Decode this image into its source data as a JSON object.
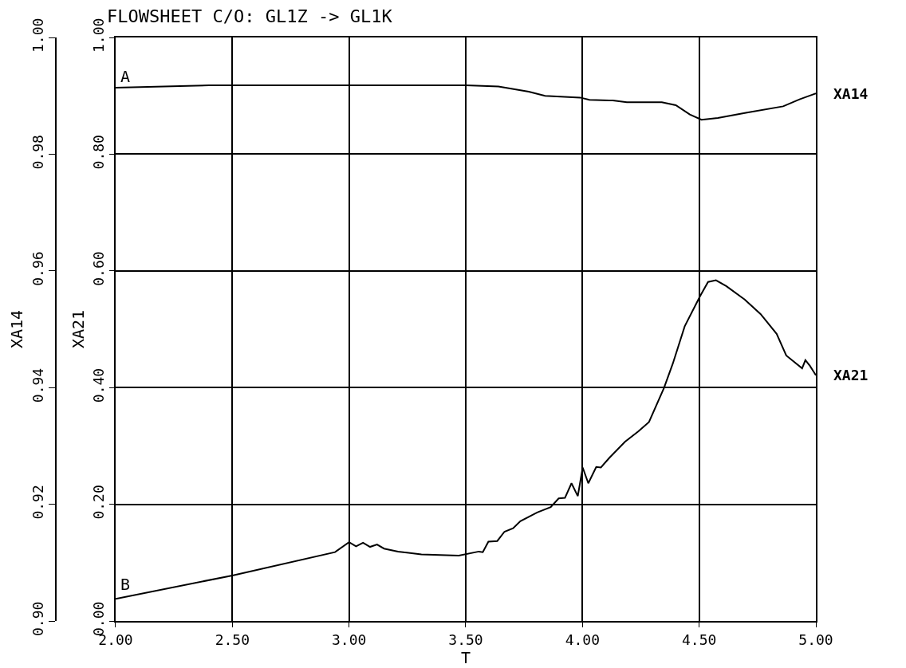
{
  "chart_data": {
    "type": "line",
    "title": "FLOWSHEET C/O: GL1Z -> GL1K",
    "xlabel": "T",
    "ylabel": "XA21",
    "y2label": "XA14",
    "xlim": [
      2,
      5
    ],
    "xticks": [
      {
        "value": 2,
        "label": "2.00"
      },
      {
        "value": 2.5,
        "label": "2.50"
      },
      {
        "value": 3,
        "label": "3.00"
      },
      {
        "value": 3.5,
        "label": "3.50"
      },
      {
        "value": 4,
        "label": "4.00"
      },
      {
        "value": 4.5,
        "label": "4.50"
      },
      {
        "value": 5,
        "label": "5.00"
      }
    ],
    "ylim": [
      0,
      1
    ],
    "yticks": [
      {
        "value": 0,
        "label": "0.00"
      },
      {
        "value": 0.2,
        "label": "0.20"
      },
      {
        "value": 0.4,
        "label": "0.40"
      },
      {
        "value": 0.6,
        "label": "0.60"
      },
      {
        "value": 0.8,
        "label": "0.80"
      },
      {
        "value": 1,
        "label": "1.00"
      }
    ],
    "y2lim": [
      0.9,
      1
    ],
    "y2ticks": [
      {
        "value": 0.9,
        "label": "0.90"
      },
      {
        "value": 0.92,
        "label": "0.92"
      },
      {
        "value": 0.94,
        "label": "0.94"
      },
      {
        "value": 0.96,
        "label": "0.96"
      },
      {
        "value": 0.98,
        "label": "0.98"
      },
      {
        "value": 1,
        "label": "1.00"
      }
    ],
    "grid": true,
    "legend": false,
    "marker": "none",
    "line_style": "solid",
    "annotations": [
      {
        "text": "A",
        "x": 2,
        "y": 0.91
      },
      {
        "text": "B",
        "x": 2,
        "y": 0.04
      }
    ],
    "series": [
      {
        "name": "XA14",
        "color": "#000000",
        "axis": "y2",
        "x": [
          2.0,
          2.4,
          3.0,
          3.5,
          3.64,
          3.77,
          3.84,
          3.99,
          4.03,
          4.13,
          4.19,
          4.34,
          4.4,
          4.46,
          4.51,
          4.58,
          4.7,
          4.86,
          4.93,
          5.0
        ],
        "values": [
          0.9914,
          0.9918,
          0.9918,
          0.9918,
          0.9916,
          0.9907,
          0.99,
          0.9897,
          0.9893,
          0.9892,
          0.9889,
          0.9889,
          0.9884,
          0.9868,
          0.9859,
          0.9862,
          0.9871,
          0.9882,
          0.9894,
          0.9904
        ]
      },
      {
        "name": "XA21",
        "color": "#000000",
        "x": [
          2.0,
          2.5,
          2.94,
          3.0,
          3.03,
          3.06,
          3.09,
          3.12,
          3.15,
          3.21,
          3.31,
          3.47,
          3.556,
          3.573,
          3.597,
          3.635,
          3.666,
          3.703,
          3.734,
          3.806,
          3.864,
          3.898,
          3.925,
          3.953,
          3.98,
          4.001,
          4.025,
          4.059,
          4.079,
          4.114,
          4.182,
          4.24,
          4.285,
          4.349,
          4.387,
          4.438,
          4.503,
          4.538,
          4.572,
          4.616,
          4.695,
          4.763,
          4.832,
          4.873,
          4.941,
          4.955,
          4.975,
          5.0
        ],
        "values": [
          0.038,
          0.078,
          0.118,
          0.135,
          0.128,
          0.134,
          0.127,
          0.131,
          0.124,
          0.119,
          0.114,
          0.112,
          0.119,
          0.118,
          0.136,
          0.137,
          0.153,
          0.159,
          0.171,
          0.186,
          0.195,
          0.21,
          0.211,
          0.236,
          0.214,
          0.263,
          0.236,
          0.264,
          0.263,
          0.279,
          0.307,
          0.325,
          0.341,
          0.399,
          0.441,
          0.505,
          0.556,
          0.581,
          0.584,
          0.574,
          0.551,
          0.526,
          0.492,
          0.455,
          0.433,
          0.447,
          0.437,
          0.421
        ]
      }
    ]
  }
}
